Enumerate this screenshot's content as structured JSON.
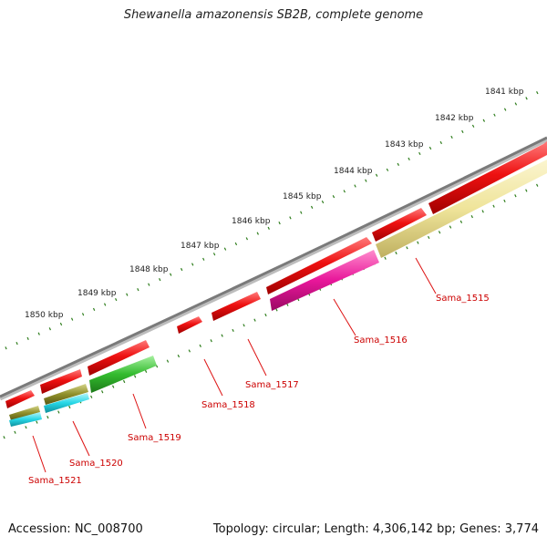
{
  "title": "Shewanella amazonensis SB2B, complete genome",
  "footer": {
    "accession": "Accession: NC_008700",
    "summary": "Topology: circular; Length: 4,306,142 bp; Genes: 3,774"
  },
  "colors": {
    "backbone": "#7a7a7a",
    "tick": "#2e7d1c",
    "label_line": "#dd1111",
    "label_text": "#cc0000"
  },
  "scale_labels": [
    "1841 kbp",
    "1842 kbp",
    "1843 kbp",
    "1844 kbp",
    "1845 kbp",
    "1846 kbp",
    "1847 kbp",
    "1848 kbp",
    "1849 kbp",
    "1850 kbp"
  ],
  "gene_labels": [
    "Sama_1515",
    "Sama_1516",
    "Sama_1517",
    "Sama_1518",
    "Sama_1519",
    "Sama_1520",
    "Sama_1521"
  ],
  "feature_colors": {
    "cds": "#ee1111",
    "sama_1515": "#efe49a",
    "sama_1516": "#e8169a",
    "sama_1519": "#33bb2e",
    "sama_1520": "#8f8f2a",
    "sama_1521": "#26d7e6"
  }
}
